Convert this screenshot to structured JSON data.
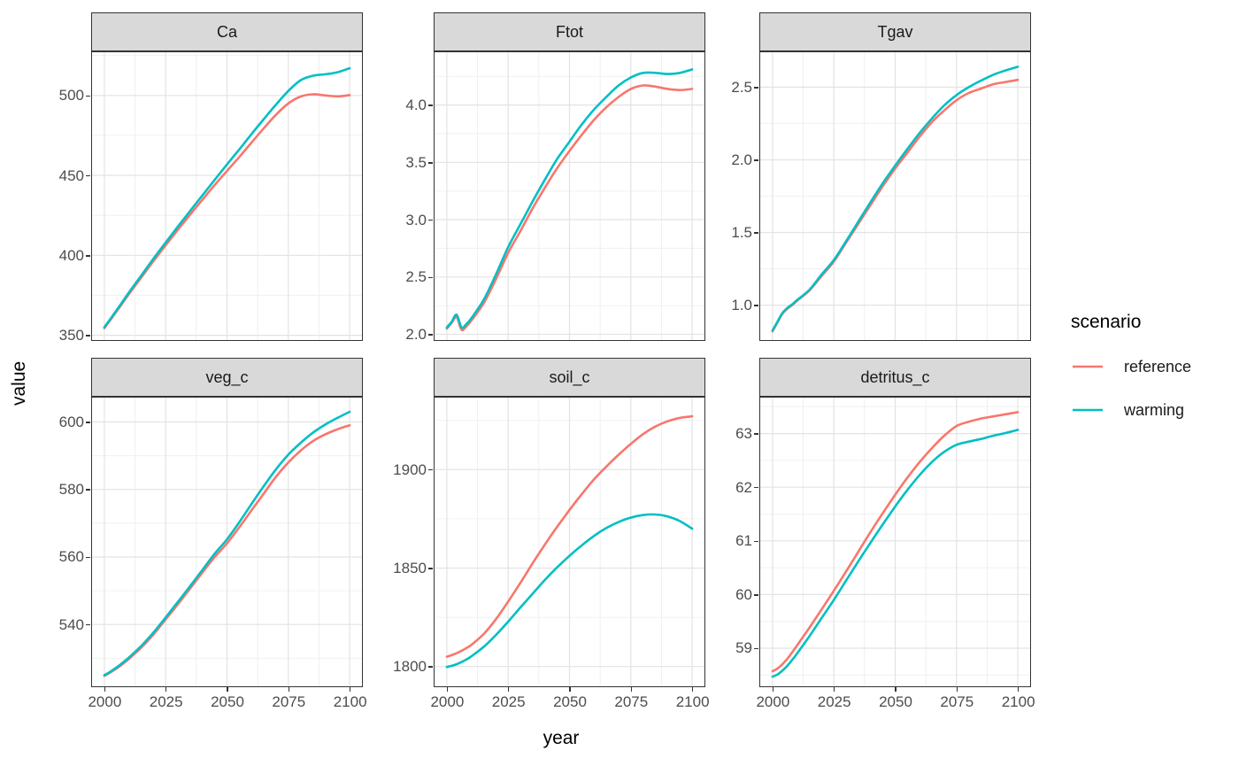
{
  "axes": {
    "x_title": "year",
    "y_title": "value"
  },
  "legend": {
    "title": "scenario",
    "entries": [
      {
        "label": "reference",
        "color": "#F8766D"
      },
      {
        "label": "warming",
        "color": "#00BFC4"
      }
    ]
  },
  "theme": {
    "strip_background": "#D9D9D9",
    "panel_background": "#FFFFFF",
    "panel_border": "#333333",
    "grid_major": "#E3E3E3",
    "grid_minor": "#F0F0F0",
    "tick_text_color": "#4D4D4D"
  },
  "chart_data": {
    "type": "line",
    "title": "",
    "xlabel": "year",
    "ylabel": "value",
    "legend_position": "right",
    "grid": "major+minor",
    "series_names": [
      "reference",
      "warming"
    ],
    "series_colors": [
      "#F8766D",
      "#00BFC4"
    ],
    "x": [
      2000,
      2002,
      2004,
      2006,
      2008,
      2010,
      2015,
      2020,
      2025,
      2030,
      2035,
      2040,
      2045,
      2050,
      2055,
      2060,
      2065,
      2070,
      2075,
      2080,
      2085,
      2090,
      2095,
      2100
    ],
    "xlim": [
      1995,
      2105
    ],
    "xticks": [
      2000,
      2025,
      2050,
      2075,
      2100
    ],
    "xtick_labels": [
      "2000",
      "2025",
      "2050",
      "2075",
      "2100"
    ],
    "facets": [
      {
        "title": "Ca",
        "ylim": [
          347,
          527
        ],
        "yticks": [
          350,
          400,
          450,
          500
        ],
        "ytick_labels": [
          "350",
          "400",
          "450",
          "500"
        ],
        "series": {
          "reference": [
            354.5,
            358.6,
            362.8,
            367,
            371.3,
            375.7,
            386,
            396.3,
            406.3,
            416,
            425.5,
            434.8,
            444,
            452.8,
            461.5,
            470.5,
            479.5,
            488,
            495,
            499.3,
            500.7,
            500,
            499.4,
            500.2
          ],
          "warming": [
            355,
            359.2,
            363.5,
            367.8,
            372.2,
            376.7,
            387.2,
            397.8,
            408,
            418,
            427.8,
            437.5,
            447.2,
            456.8,
            466.2,
            475.8,
            485.2,
            494.3,
            502.8,
            509.5,
            512.3,
            513.2,
            514.5,
            517
          ]
        }
      },
      {
        "title": "Ftot",
        "ylim": [
          1.95,
          4.46
        ],
        "yticks": [
          2.0,
          2.5,
          3.0,
          3.5,
          4.0
        ],
        "ytick_labels": [
          "2.0",
          "2.5",
          "3.0",
          "3.5",
          "4.0"
        ],
        "series": {
          "reference": [
            2.05,
            2.1,
            2.15,
            2.04,
            2.07,
            2.12,
            2.27,
            2.48,
            2.71,
            2.9,
            3.1,
            3.28,
            3.45,
            3.6,
            3.74,
            3.87,
            3.98,
            4.07,
            4.14,
            4.17,
            4.16,
            4.14,
            4.13,
            4.14
          ],
          "warming": [
            2.06,
            2.11,
            2.17,
            2.06,
            2.09,
            2.14,
            2.3,
            2.52,
            2.76,
            2.96,
            3.16,
            3.35,
            3.53,
            3.68,
            3.83,
            3.96,
            4.07,
            4.17,
            4.24,
            4.28,
            4.28,
            4.27,
            4.28,
            4.31
          ]
        }
      },
      {
        "title": "Tgav",
        "ylim": [
          0.76,
          2.74
        ],
        "yticks": [
          1.0,
          1.5,
          2.0,
          2.5
        ],
        "ytick_labels": [
          "1.0",
          "1.5",
          "2.0",
          "2.5"
        ],
        "series": {
          "reference": [
            0.82,
            0.88,
            0.94,
            0.975,
            1.0,
            1.03,
            1.1,
            1.2,
            1.3,
            1.43,
            1.56,
            1.69,
            1.82,
            1.94,
            2.05,
            2.16,
            2.26,
            2.34,
            2.41,
            2.46,
            2.49,
            2.52,
            2.535,
            2.55
          ],
          "warming": [
            0.825,
            0.885,
            0.945,
            0.98,
            1.005,
            1.035,
            1.105,
            1.21,
            1.31,
            1.44,
            1.575,
            1.71,
            1.84,
            1.96,
            2.075,
            2.185,
            2.285,
            2.375,
            2.445,
            2.5,
            2.545,
            2.585,
            2.615,
            2.64
          ]
        }
      },
      {
        "title": "veg_c",
        "ylim": [
          521.7,
          607.2
        ],
        "yticks": [
          540,
          560,
          580,
          600
        ],
        "ytick_labels": [
          "540",
          "560",
          "580",
          "600"
        ],
        "series": {
          "reference": [
            524.8,
            525.6,
            526.5,
            527.5,
            528.6,
            529.8,
            533.1,
            537,
            541.5,
            546,
            550.7,
            555.4,
            560,
            564,
            568.8,
            573.8,
            578.8,
            583.8,
            588,
            591.5,
            594.3,
            596.3,
            597.8,
            599
          ],
          "warming": [
            525,
            525.8,
            526.8,
            527.8,
            529,
            530.2,
            533.6,
            537.6,
            542.1,
            546.7,
            551.4,
            556.2,
            561,
            565.2,
            570.3,
            575.7,
            581,
            586,
            590.3,
            593.8,
            596.8,
            599.2,
            601.2,
            603
          ]
        }
      },
      {
        "title": "soil_c",
        "ylim": [
          1790,
          1936.5
        ],
        "yticks": [
          1800,
          1850,
          1900
        ],
        "ytick_labels": [
          "1800",
          "1850",
          "1900"
        ],
        "series": {
          "reference": [
            1805,
            1805.8,
            1806.8,
            1808,
            1809.4,
            1811,
            1816.5,
            1824,
            1833,
            1842.5,
            1852.5,
            1862,
            1871,
            1879.5,
            1887.5,
            1895,
            1901.5,
            1907.5,
            1913,
            1918,
            1921.8,
            1924.5,
            1926.2,
            1927
          ],
          "warming": [
            1799.8,
            1800.4,
            1801.2,
            1802.3,
            1803.6,
            1805.2,
            1810,
            1816,
            1822.8,
            1830,
            1837,
            1844,
            1850.4,
            1856.2,
            1861.5,
            1866.3,
            1870.3,
            1873.4,
            1875.6,
            1876.9,
            1877.2,
            1876.2,
            1873.8,
            1870
          ]
        }
      },
      {
        "title": "detritus_c",
        "ylim": [
          58.29,
          63.67
        ],
        "yticks": [
          59,
          60,
          61,
          62,
          63
        ],
        "ytick_labels": [
          "59",
          "60",
          "61",
          "62",
          "63"
        ],
        "series": {
          "reference": [
            58.57,
            58.62,
            58.7,
            58.8,
            58.92,
            59.05,
            59.38,
            59.72,
            60.07,
            60.43,
            60.8,
            61.17,
            61.52,
            61.86,
            62.18,
            62.47,
            62.73,
            62.96,
            63.14,
            63.22,
            63.28,
            63.32,
            63.36,
            63.4
          ],
          "warming": [
            58.47,
            58.51,
            58.58,
            58.67,
            58.78,
            58.9,
            59.22,
            59.56,
            59.9,
            60.26,
            60.62,
            60.97,
            61.31,
            61.64,
            61.95,
            62.23,
            62.47,
            62.66,
            62.79,
            62.85,
            62.9,
            62.96,
            63.01,
            63.07
          ]
        }
      }
    ]
  }
}
